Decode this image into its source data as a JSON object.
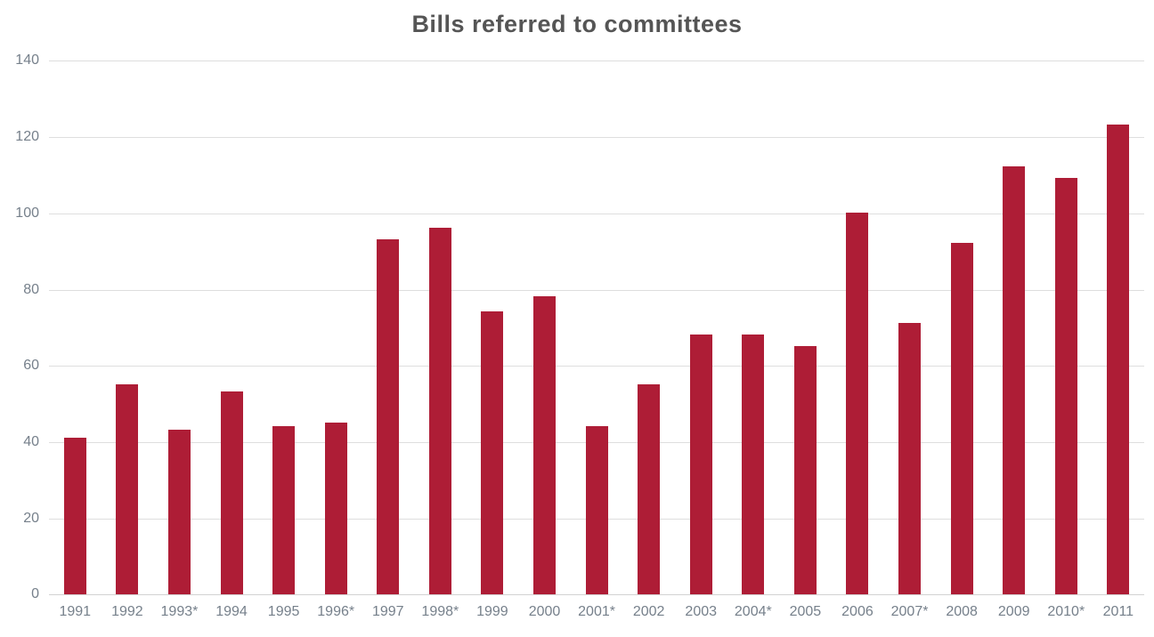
{
  "title": "Bills referred to committees",
  "colors": {
    "bar": "#ae1d36",
    "grid": "#dedede",
    "axis_line": "#d2d2d2",
    "title_text": "#555555",
    "axis_text": "#76808b"
  },
  "chart_data": {
    "type": "bar",
    "title": "Bills referred to committees",
    "categories": [
      "1991",
      "1992",
      "1993*",
      "1994",
      "1995",
      "1996*",
      "1997",
      "1998*",
      "1999",
      "2000",
      "2001*",
      "2002",
      "2003",
      "2004*",
      "2005",
      "2006",
      "2007*",
      "2008",
      "2009",
      "2010*",
      "2011"
    ],
    "values": [
      41,
      55,
      43,
      53,
      44,
      45,
      93,
      96,
      74,
      78,
      44,
      55,
      68,
      68,
      65,
      100,
      71,
      92,
      112,
      109,
      123
    ],
    "xlabel": "",
    "ylabel": "",
    "ylim": [
      0,
      140
    ],
    "yticks": [
      0,
      20,
      40,
      60,
      80,
      100,
      120,
      140
    ],
    "grid": "horizontal",
    "legend": "none"
  }
}
